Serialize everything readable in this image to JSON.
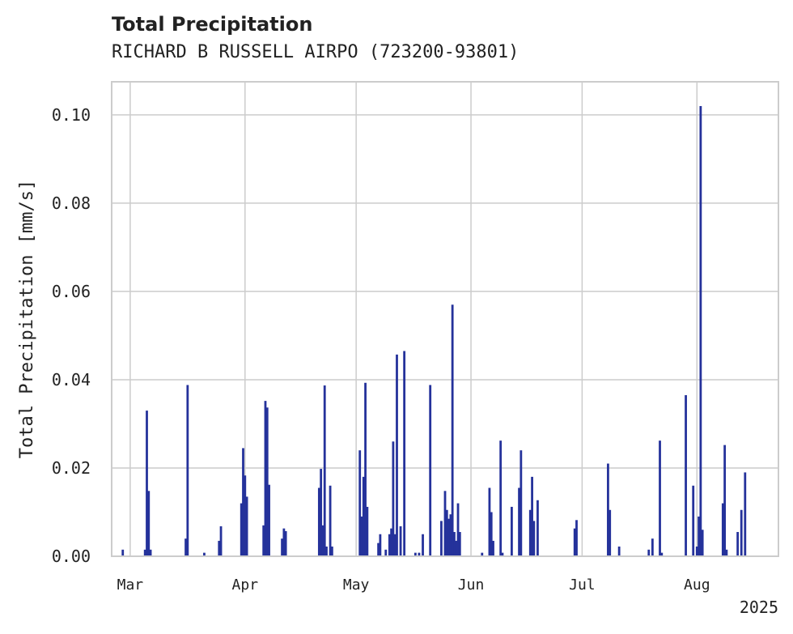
{
  "header": {
    "title": "Total Precipitation",
    "subtitle": "RICHARD B RUSSELL AIRPO (723200-93801)"
  },
  "colors": {
    "bar": "#25329b",
    "grid": "#cccccc",
    "axis": "#cccccc",
    "text": "#222222"
  },
  "chart_data": {
    "type": "bar",
    "title": "Total Precipitation",
    "subtitle": "RICHARD B RUSSELL AIRPO (723200-93801)",
    "ylabel": "Total Precipitation [mm/s]",
    "xlabel": "",
    "x_type": "date",
    "xlim": [
      "2025-02-24",
      "2025-08-23"
    ],
    "ylim": [
      0,
      0.1075
    ],
    "yticks": [
      0.0,
      0.02,
      0.04,
      0.06,
      0.08,
      0.1
    ],
    "ytick_labels": [
      "0.00",
      "0.02",
      "0.04",
      "0.06",
      "0.08",
      "0.10"
    ],
    "xticks": [
      "2025-03-01",
      "2025-04-01",
      "2025-05-01",
      "2025-06-01",
      "2025-07-01",
      "2025-08-01"
    ],
    "xtick_labels": [
      "Mar",
      "Apr",
      "May",
      "Jun",
      "Jul",
      "Aug"
    ],
    "x_offset_label": "2025",
    "grid": true,
    "series": [
      {
        "points": [
          {
            "x": "2025-02-27",
            "y": 0.0015
          },
          {
            "x": "2025-03-05",
            "y": 0.0015
          },
          {
            "x": "2025-03-05 12:00",
            "y": 0.033
          },
          {
            "x": "2025-03-06",
            "y": 0.0148
          },
          {
            "x": "2025-03-06 12:00",
            "y": 0.0015
          },
          {
            "x": "2025-03-16",
            "y": 0.004
          },
          {
            "x": "2025-03-16 12:00",
            "y": 0.0388
          },
          {
            "x": "2025-03-21",
            "y": 0.0008
          },
          {
            "x": "2025-03-25",
            "y": 0.0035
          },
          {
            "x": "2025-03-25 12:00",
            "y": 0.0068
          },
          {
            "x": "2025-03-31",
            "y": 0.012
          },
          {
            "x": "2025-03-31 12:00",
            "y": 0.0245
          },
          {
            "x": "2025-04-01",
            "y": 0.0183
          },
          {
            "x": "2025-04-01 12:00",
            "y": 0.0135
          },
          {
            "x": "2025-04-06",
            "y": 0.007
          },
          {
            "x": "2025-04-06 12:00",
            "y": 0.0352
          },
          {
            "x": "2025-04-07",
            "y": 0.0337
          },
          {
            "x": "2025-04-07 12:00",
            "y": 0.0162
          },
          {
            "x": "2025-04-11",
            "y": 0.004
          },
          {
            "x": "2025-04-11 12:00",
            "y": 0.0063
          },
          {
            "x": "2025-04-12",
            "y": 0.0057
          },
          {
            "x": "2025-04-21",
            "y": 0.0155
          },
          {
            "x": "2025-04-21 12:00",
            "y": 0.0198
          },
          {
            "x": "2025-04-22",
            "y": 0.007
          },
          {
            "x": "2025-04-22 12:00",
            "y": 0.0387
          },
          {
            "x": "2025-04-23",
            "y": 0.0022
          },
          {
            "x": "2025-04-24",
            "y": 0.016
          },
          {
            "x": "2025-04-24 12:00",
            "y": 0.0022
          },
          {
            "x": "2025-05-02",
            "y": 0.024
          },
          {
            "x": "2025-05-02 12:00",
            "y": 0.009
          },
          {
            "x": "2025-05-03",
            "y": 0.018
          },
          {
            "x": "2025-05-03 12:00",
            "y": 0.0393
          },
          {
            "x": "2025-05-04",
            "y": 0.0112
          },
          {
            "x": "2025-05-07",
            "y": 0.003
          },
          {
            "x": "2025-05-07 12:00",
            "y": 0.005
          },
          {
            "x": "2025-05-09",
            "y": 0.0015
          },
          {
            "x": "2025-05-10",
            "y": 0.005
          },
          {
            "x": "2025-05-10 12:00",
            "y": 0.0063
          },
          {
            "x": "2025-05-11",
            "y": 0.026
          },
          {
            "x": "2025-05-11 12:00",
            "y": 0.005
          },
          {
            "x": "2025-05-12",
            "y": 0.0457
          },
          {
            "x": "2025-05-13",
            "y": 0.0068
          },
          {
            "x": "2025-05-14",
            "y": 0.0465
          },
          {
            "x": "2025-05-17",
            "y": 0.0008
          },
          {
            "x": "2025-05-18",
            "y": 0.0008
          },
          {
            "x": "2025-05-19",
            "y": 0.005
          },
          {
            "x": "2025-05-21",
            "y": 0.0388
          },
          {
            "x": "2025-05-24",
            "y": 0.008
          },
          {
            "x": "2025-05-25",
            "y": 0.0148
          },
          {
            "x": "2025-05-25 12:00",
            "y": 0.0105
          },
          {
            "x": "2025-05-26",
            "y": 0.0085
          },
          {
            "x": "2025-05-26 12:00",
            "y": 0.0095
          },
          {
            "x": "2025-05-27",
            "y": 0.057
          },
          {
            "x": "2025-05-27 12:00",
            "y": 0.0055
          },
          {
            "x": "2025-05-28",
            "y": 0.0035
          },
          {
            "x": "2025-05-28 12:00",
            "y": 0.012
          },
          {
            "x": "2025-05-29",
            "y": 0.0055
          },
          {
            "x": "2025-06-04",
            "y": 0.0008
          },
          {
            "x": "2025-06-06",
            "y": 0.0155
          },
          {
            "x": "2025-06-06 12:00",
            "y": 0.01
          },
          {
            "x": "2025-06-07",
            "y": 0.0035
          },
          {
            "x": "2025-06-09",
            "y": 0.0262
          },
          {
            "x": "2025-06-09 12:00",
            "y": 0.0008
          },
          {
            "x": "2025-06-12",
            "y": 0.0112
          },
          {
            "x": "2025-06-14",
            "y": 0.0155
          },
          {
            "x": "2025-06-14 12:00",
            "y": 0.024
          },
          {
            "x": "2025-06-17",
            "y": 0.0105
          },
          {
            "x": "2025-06-17 12:00",
            "y": 0.018
          },
          {
            "x": "2025-06-18",
            "y": 0.008
          },
          {
            "x": "2025-06-19",
            "y": 0.0127
          },
          {
            "x": "2025-06-29",
            "y": 0.0063
          },
          {
            "x": "2025-06-29 12:00",
            "y": 0.0082
          },
          {
            "x": "2025-07-08",
            "y": 0.021
          },
          {
            "x": "2025-07-08 12:00",
            "y": 0.0105
          },
          {
            "x": "2025-07-11",
            "y": 0.0022
          },
          {
            "x": "2025-07-19",
            "y": 0.0015
          },
          {
            "x": "2025-07-20",
            "y": 0.004
          },
          {
            "x": "2025-07-22",
            "y": 0.0262
          },
          {
            "x": "2025-07-22 12:00",
            "y": 0.0008
          },
          {
            "x": "2025-07-29",
            "y": 0.0365
          },
          {
            "x": "2025-07-31",
            "y": 0.016
          },
          {
            "x": "2025-08-01",
            "y": 0.0022
          },
          {
            "x": "2025-08-01 12:00",
            "y": 0.009
          },
          {
            "x": "2025-08-02",
            "y": 0.102
          },
          {
            "x": "2025-08-02 12:00",
            "y": 0.006
          },
          {
            "x": "2025-08-08",
            "y": 0.012
          },
          {
            "x": "2025-08-08 12:00",
            "y": 0.0252
          },
          {
            "x": "2025-08-09",
            "y": 0.0015
          },
          {
            "x": "2025-08-12",
            "y": 0.0055
          },
          {
            "x": "2025-08-13",
            "y": 0.0105
          },
          {
            "x": "2025-08-14",
            "y": 0.019
          }
        ]
      }
    ]
  }
}
